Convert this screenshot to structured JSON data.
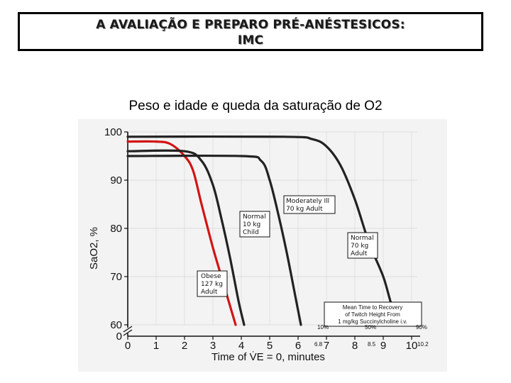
{
  "header": {
    "title_line1": "A AVALIAÇÃO E  PREPARO PRÉ-ANÉSTESICOS:",
    "title_line2": "IMC"
  },
  "subtitle": "Peso e idade e queda da saturação de O2",
  "chart_data": {
    "type": "line",
    "xlabel": "Time of V̇E = 0, minutes",
    "ylabel": "SaO2, %",
    "xlim": [
      0,
      10.2
    ],
    "ylim": [
      60,
      100
    ],
    "x_ticks": [
      0,
      1,
      2,
      3,
      4,
      5,
      6,
      7,
      8,
      9,
      10
    ],
    "y_ticks": [
      60,
      70,
      80,
      90,
      100
    ],
    "y_zero_label": "0",
    "grid": true,
    "series": [
      {
        "name": "Obese 127 kg Adult",
        "color": "#d21414",
        "points": [
          [
            0,
            98
          ],
          [
            1,
            98
          ],
          [
            1.5,
            97.5
          ],
          [
            2,
            95
          ],
          [
            2.3,
            92
          ],
          [
            2.6,
            85
          ],
          [
            3,
            76
          ],
          [
            3.4,
            68
          ],
          [
            3.8,
            60
          ]
        ]
      },
      {
        "name": "Normal 10 kg Child",
        "color": "#222222",
        "points": [
          [
            0,
            96
          ],
          [
            2,
            96
          ],
          [
            2.6,
            94
          ],
          [
            3,
            89
          ],
          [
            3.3,
            82
          ],
          [
            3.6,
            74
          ],
          [
            3.9,
            65
          ],
          [
            4.1,
            60
          ]
        ]
      },
      {
        "name": "Moderately Ill 70 kg Adult",
        "color": "#222222",
        "points": [
          [
            0,
            95
          ],
          [
            4,
            95
          ],
          [
            4.7,
            94
          ],
          [
            5,
            90
          ],
          [
            5.3,
            83
          ],
          [
            5.6,
            75
          ],
          [
            5.9,
            66
          ],
          [
            6.1,
            60
          ]
        ]
      },
      {
        "name": "Normal 70 kg Adult",
        "color": "#222222",
        "points": [
          [
            0,
            99
          ],
          [
            5.5,
            99
          ],
          [
            6.5,
            98.5
          ],
          [
            7,
            97
          ],
          [
            7.5,
            93
          ],
          [
            8,
            86
          ],
          [
            8.5,
            77
          ],
          [
            9,
            70
          ],
          [
            9.3,
            64
          ],
          [
            9.6,
            60
          ]
        ]
      }
    ],
    "annotations": {
      "obese": [
        "Obese",
        "127 kg",
        "Adult"
      ],
      "child": [
        "Normal",
        "10 kg",
        "Child"
      ],
      "modill": [
        "Moderately Ill",
        "70 kg Adult"
      ],
      "normal": [
        "Normal",
        "70 kg",
        "Adult"
      ],
      "mean_time": [
        "Mean Time to Recovery",
        "of Twitch Height From",
        "1 mg/kg Succinylcholine i.v."
      ],
      "pct_10": "10%",
      "pct_50": "50%",
      "pct_90": "90%",
      "tick_6_8": "6.8",
      "tick_8_5": "8.5",
      "tick_10_2": "10.2"
    }
  }
}
